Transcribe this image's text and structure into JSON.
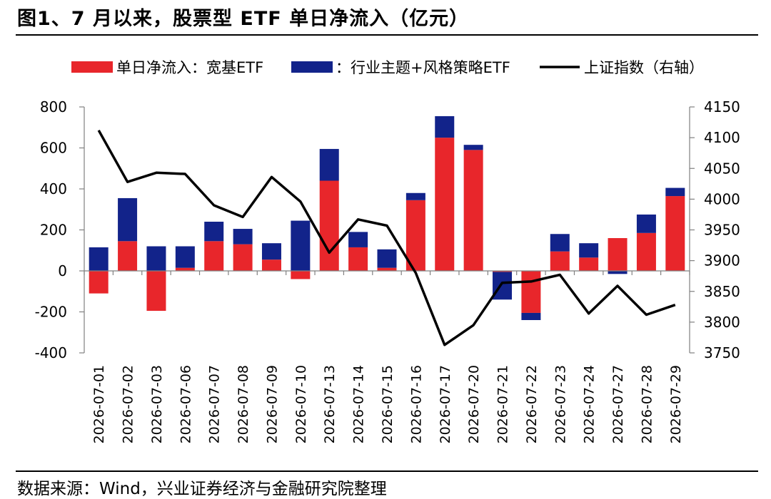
{
  "figure": {
    "title": "图1、7 月以来，股票型 ETF 单日净流入（亿元）",
    "source": "数据来源：Wind，兴业证券经济与金融研究院整理"
  },
  "colors": {
    "broad": "#e8262b",
    "sector": "#12238a",
    "index": "#000000"
  },
  "chart_data": {
    "type": "bar",
    "stacked": true,
    "categories": [
      "2026-07-01",
      "2026-07-02",
      "2026-07-03",
      "2026-07-06",
      "2026-07-07",
      "2026-07-08",
      "2026-07-09",
      "2026-07-10",
      "2026-07-13",
      "2026-07-14",
      "2026-07-15",
      "2026-07-16",
      "2026-07-17",
      "2026-07-20",
      "2026-07-21",
      "2026-07-22",
      "2026-07-23",
      "2026-07-24",
      "2026-07-27",
      "2026-07-28",
      "2026-07-29"
    ],
    "series": [
      {
        "name": "单日净流入：宽基ETF",
        "type": "bar",
        "color": "#e8262b",
        "values": [
          -110,
          145,
          -195,
          15,
          145,
          130,
          55,
          -40,
          440,
          115,
          15,
          345,
          650,
          590,
          -5,
          -205,
          95,
          65,
          160,
          185,
          365
        ]
      },
      {
        "name": "：行业主题+风格策略ETF",
        "type": "bar",
        "color": "#12238a",
        "values": [
          115,
          210,
          120,
          105,
          95,
          75,
          80,
          245,
          155,
          75,
          90,
          35,
          105,
          25,
          -135,
          -35,
          85,
          70,
          -15,
          90,
          40
        ]
      },
      {
        "name": "上证指数（右轴）",
        "type": "line",
        "axis": "right",
        "color": "#000000",
        "values": [
          4112,
          4028,
          4043,
          4041,
          3990,
          3971,
          4036,
          3996,
          3913,
          3967,
          3957,
          3880,
          3763,
          3795,
          3864,
          3866,
          3877,
          3814,
          3859,
          3812,
          3828
        ]
      }
    ],
    "ylim": [
      -400,
      800
    ],
    "yticks": [
      -400,
      -200,
      0,
      200,
      400,
      600,
      800
    ],
    "y2lim": [
      3750,
      4150
    ],
    "y2ticks": [
      3750,
      3800,
      3850,
      3900,
      3950,
      4000,
      4050,
      4100,
      4150
    ],
    "legend_position": "top",
    "grid": false
  }
}
